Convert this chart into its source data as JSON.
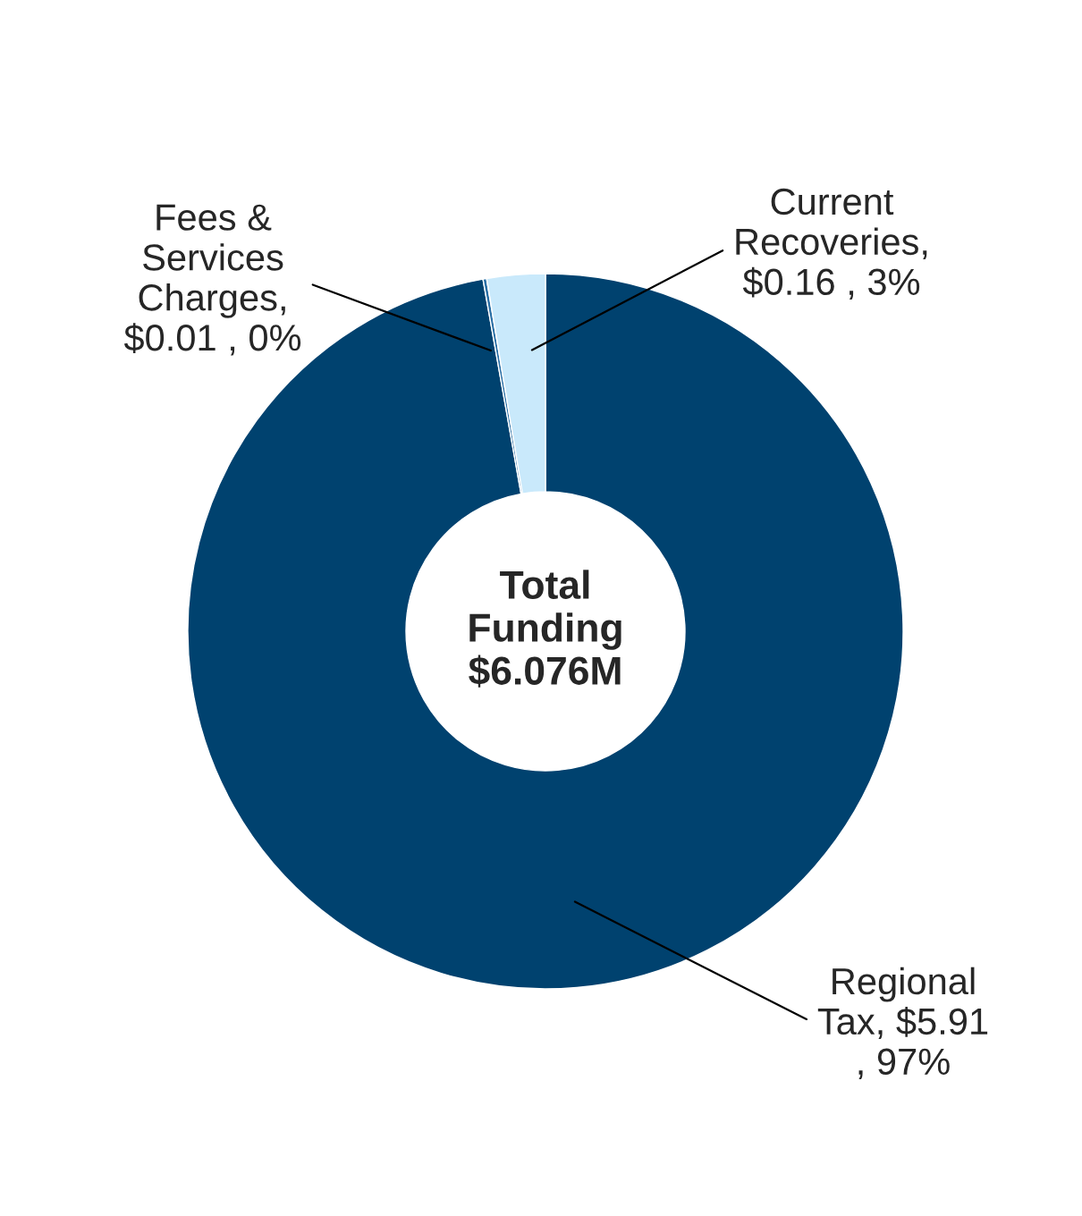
{
  "chart_data": {
    "type": "donut",
    "categories": [
      "Regional Tax",
      "Fees & Services Charges",
      "Current Recoveries"
    ],
    "values": [
      5.91,
      0.01,
      0.16
    ],
    "colors": [
      "#00426f",
      "#2a6fa5",
      "#c9e9fb"
    ],
    "value_labels": [
      ", $5.91 , 97%",
      ", $0.01 , 0%",
      ", $0.16 , 3%"
    ],
    "annotations": [
      "Total Funding $6.076M"
    ],
    "legend": false
  }
}
